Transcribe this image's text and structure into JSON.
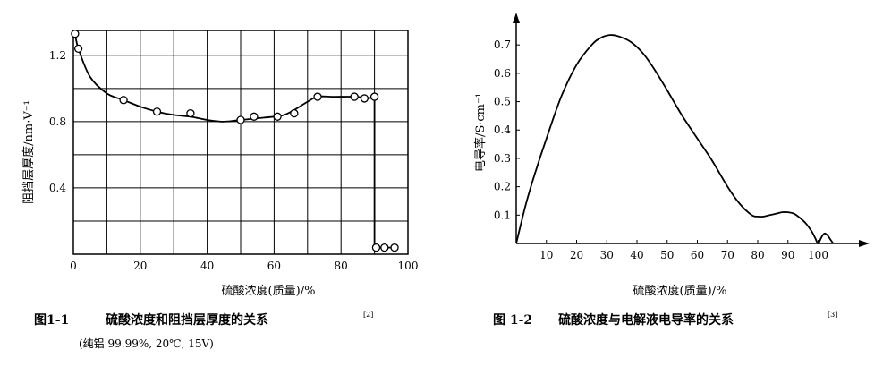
{
  "chart_data": [
    {
      "type": "scatter",
      "caption_num": "图1-1",
      "caption_text": "硫酸浓度和阻挡层厚度的关系",
      "caption_ref": "[2]",
      "caption_note": "(纯铝 99.99%, 20℃, 15V)",
      "xlabel": "硫酸浓度(质量)/%",
      "ylabel": "阻挡层厚度/nm·V⁻¹",
      "xlim": [
        0,
        100
      ],
      "ylim": [
        0,
        1.35
      ],
      "x_ticks": [
        0,
        20,
        40,
        60,
        80,
        100
      ],
      "x_tick_labels": [
        "0",
        "20",
        "40",
        "60",
        "80",
        "100"
      ],
      "y_ticks": [
        0.4,
        0.8,
        1.2
      ],
      "y_tick_labels": [
        "0.4",
        "0.8",
        "1.2"
      ],
      "grid": true,
      "series": [
        {
          "marker": "circle",
          "x": [
            0.5,
            1.5,
            15,
            25,
            35,
            50,
            54,
            61,
            66,
            73,
            84,
            87,
            90,
            90.5,
            93,
            96
          ],
          "y": [
            1.33,
            1.24,
            0.93,
            0.86,
            0.85,
            0.81,
            0.83,
            0.83,
            0.85,
            0.95,
            0.95,
            0.94,
            0.95,
            0.04,
            0.04,
            0.04
          ]
        }
      ],
      "fit_line": {
        "x": [
          0.5,
          1.5,
          5,
          10,
          15,
          20,
          25,
          30,
          35,
          40,
          45,
          50,
          55,
          60,
          63,
          66,
          70,
          73,
          78,
          84,
          87,
          90,
          90,
          91,
          93,
          96
        ],
        "y": [
          1.33,
          1.24,
          1.07,
          0.97,
          0.93,
          0.89,
          0.86,
          0.84,
          0.83,
          0.81,
          0.8,
          0.81,
          0.82,
          0.83,
          0.84,
          0.87,
          0.92,
          0.95,
          0.95,
          0.95,
          0.945,
          0.94,
          0.04,
          0.04,
          0.04,
          0.04
        ]
      }
    },
    {
      "type": "line",
      "caption_num": "图 1-2",
      "caption_text": "硫酸浓度与电解液电导率的关系",
      "caption_ref": "[3]",
      "xlabel": "硫酸浓度(质量)/%",
      "ylabel": "电导率/S·cm⁻¹",
      "xlim": [
        0,
        112
      ],
      "ylim": [
        0,
        0.77
      ],
      "x_ticks": [
        10,
        20,
        30,
        40,
        50,
        60,
        70,
        80,
        90,
        100
      ],
      "x_tick_labels": [
        "10",
        "20",
        "30",
        "40",
        "50",
        "60",
        "70",
        "80",
        "90",
        "100"
      ],
      "y_ticks": [
        0.1,
        0.2,
        0.3,
        0.4,
        0.5,
        0.6,
        0.7
      ],
      "y_tick_labels": [
        "0.1",
        "0.2",
        "0.3",
        "0.4",
        "0.5",
        "0.6",
        "0.7"
      ],
      "grid": false,
      "series": [
        {
          "x": [
            0,
            3,
            6,
            10,
            15,
            20,
            25,
            28,
            31,
            34,
            38,
            42,
            46,
            50,
            55,
            60,
            65,
            70,
            74,
            78,
            80,
            82,
            84,
            86,
            88,
            90,
            92,
            94,
            96,
            98,
            99,
            100,
            101,
            102,
            103,
            104,
            105
          ],
          "y": [
            0.0,
            0.13,
            0.24,
            0.37,
            0.52,
            0.63,
            0.7,
            0.725,
            0.735,
            0.73,
            0.71,
            0.67,
            0.61,
            0.54,
            0.45,
            0.37,
            0.29,
            0.2,
            0.14,
            0.1,
            0.095,
            0.095,
            0.1,
            0.105,
            0.11,
            0.11,
            0.105,
            0.09,
            0.07,
            0.04,
            0.02,
            0.0,
            0.02,
            0.035,
            0.03,
            0.015,
            0.0
          ]
        }
      ]
    }
  ]
}
